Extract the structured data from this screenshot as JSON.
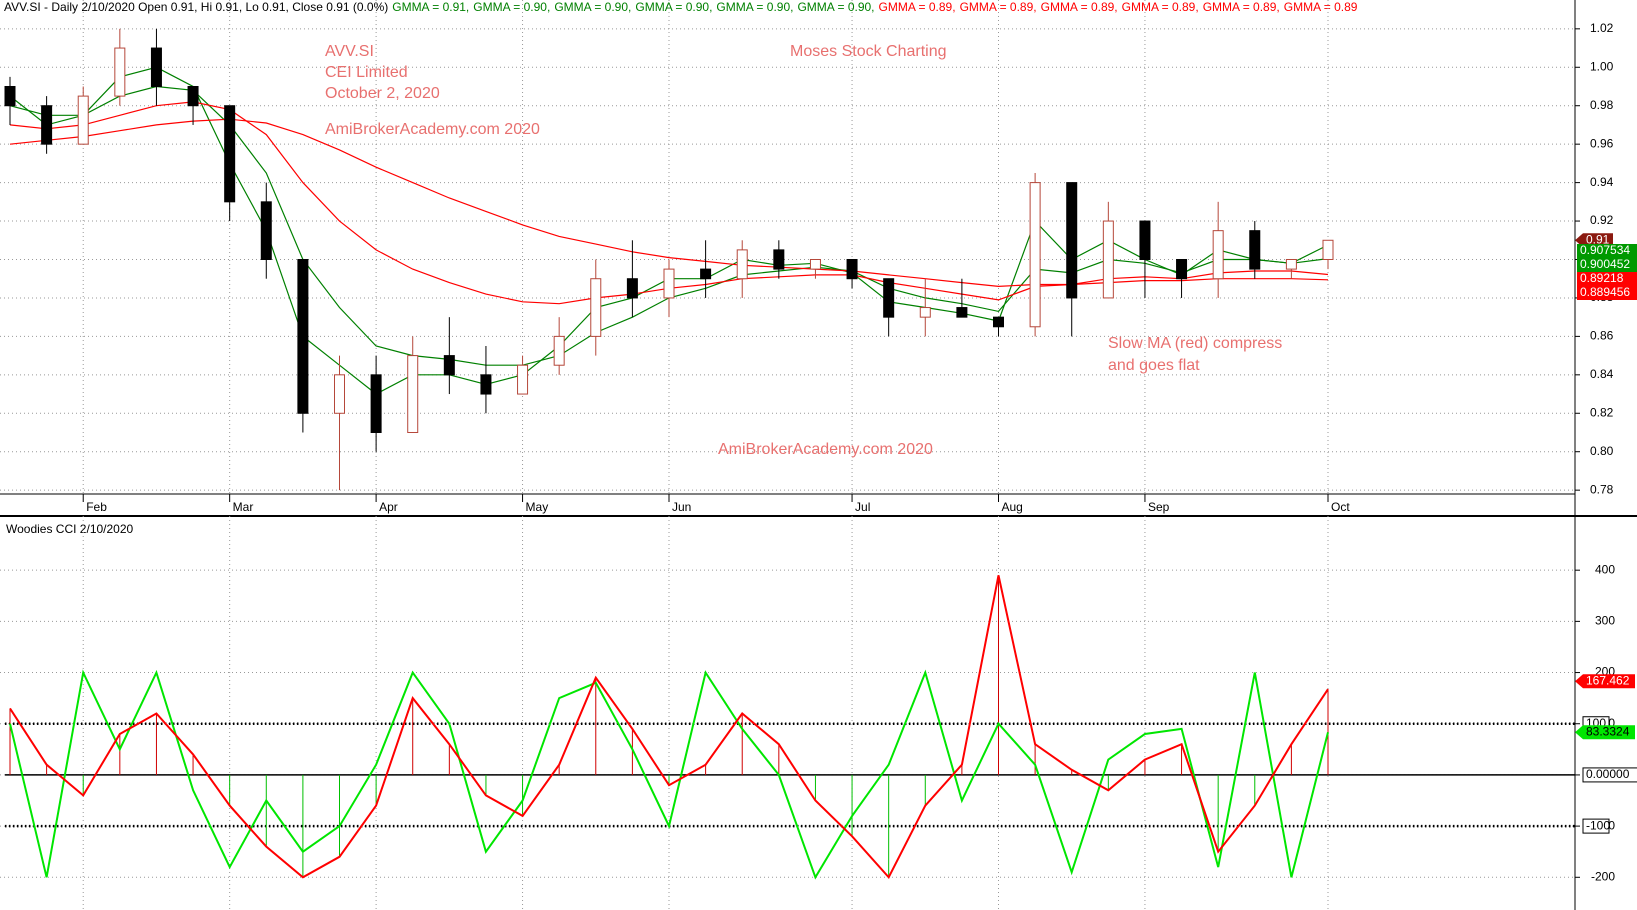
{
  "header": {
    "parts": [
      "AVV.SI - Daily 2/10/2020 Open 0.91, Hi 0.91, Lo 0.91, Close 0.91 (0.0%)",
      "GMMA = 0.91,",
      "GMMA = 0.90,",
      "GMMA = 0.90,",
      "GMMA = 0.90,",
      "GMMA = 0.90,",
      "GMMA = 0.90,",
      "GMMA = 0.89,",
      "GMMA = 0.89,",
      "GMMA = 0.89,",
      "GMMA = 0.89,",
      "GMMA = 0.89,",
      "GMMA = 0.89"
    ],
    "colors": [
      "#000000",
      "#008000",
      "#008000",
      "#008000",
      "#008000",
      "#008000",
      "#008000",
      "#ff0000",
      "#ff0000",
      "#ff0000",
      "#ff0000",
      "#ff0000",
      "#ff0000"
    ]
  },
  "chart_data": [
    {
      "type": "candlestick",
      "categories": [
        null,
        null,
        "Feb",
        null,
        null,
        null,
        "Mar",
        null,
        null,
        null,
        "Apr",
        null,
        null,
        null,
        "May",
        null,
        null,
        null,
        "Jun",
        null,
        null,
        null,
        null,
        "Jul",
        null,
        null,
        null,
        "Aug",
        null,
        null,
        null,
        "Sep",
        null,
        null,
        null,
        null,
        "Oct"
      ],
      "open": [
        0.99,
        0.98,
        0.96,
        0.985,
        1.01,
        0.99,
        0.98,
        0.93,
        0.9,
        0.82,
        0.84,
        0.81,
        0.85,
        0.84,
        0.83,
        0.845,
        0.86,
        0.89,
        0.88,
        0.895,
        0.89,
        0.905,
        0.895,
        0.9,
        0.89,
        0.87,
        0.875,
        0.87,
        0.865,
        0.94,
        0.88,
        0.92,
        0.9,
        0.89,
        0.915,
        0.895,
        0.9
      ],
      "high": [
        0.995,
        0.985,
        0.99,
        1.02,
        1.02,
        0.99,
        0.98,
        0.94,
        0.9,
        0.85,
        0.85,
        0.86,
        0.87,
        0.855,
        0.85,
        0.87,
        0.9,
        0.91,
        0.9,
        0.91,
        0.91,
        0.91,
        0.9,
        0.9,
        0.89,
        0.89,
        0.89,
        0.87,
        0.945,
        0.94,
        0.93,
        0.92,
        0.9,
        0.93,
        0.92,
        0.9,
        0.91
      ],
      "low": [
        0.97,
        0.955,
        0.96,
        0.98,
        0.98,
        0.97,
        0.92,
        0.89,
        0.81,
        0.78,
        0.8,
        0.81,
        0.83,
        0.82,
        0.83,
        0.84,
        0.85,
        0.87,
        0.87,
        0.88,
        0.88,
        0.89,
        0.89,
        0.885,
        0.86,
        0.86,
        0.87,
        0.86,
        0.86,
        0.86,
        0.88,
        0.88,
        0.88,
        0.88,
        0.89,
        0.89,
        0.895
      ],
      "close": [
        0.98,
        0.96,
        0.985,
        1.01,
        0.99,
        0.98,
        0.93,
        0.9,
        0.82,
        0.84,
        0.81,
        0.85,
        0.84,
        0.83,
        0.845,
        0.86,
        0.89,
        0.88,
        0.895,
        0.89,
        0.905,
        0.895,
        0.9,
        0.89,
        0.87,
        0.875,
        0.87,
        0.865,
        0.94,
        0.88,
        0.92,
        0.9,
        0.89,
        0.915,
        0.895,
        0.9,
        0.91
      ],
      "up_color": "#b5473a",
      "down_color": "#000000",
      "series": [
        {
          "color": "#008000",
          "values": [
            0.985,
            0.97,
            0.975,
            0.995,
            1.0,
            0.99,
            0.95,
            0.915,
            0.86,
            0.845,
            0.83,
            0.84,
            0.84,
            0.835,
            0.84,
            0.855,
            0.875,
            0.88,
            0.89,
            0.89,
            0.9,
            0.897,
            0.898,
            0.893,
            0.878,
            0.875,
            0.872,
            0.868,
            0.92,
            0.9,
            0.91,
            0.9,
            0.892,
            0.905,
            0.9,
            0.898,
            0.907534
          ]
        },
        {
          "color": "#008000",
          "values": [
            0.98,
            0.975,
            0.975,
            0.985,
            0.99,
            0.988,
            0.97,
            0.945,
            0.9,
            0.875,
            0.855,
            0.85,
            0.848,
            0.845,
            0.845,
            0.85,
            0.862,
            0.87,
            0.88,
            0.885,
            0.892,
            0.894,
            0.896,
            0.894,
            0.885,
            0.88,
            0.877,
            0.873,
            0.895,
            0.893,
            0.9,
            0.898,
            0.893,
            0.9,
            0.9,
            0.898,
            0.900452
          ]
        },
        {
          "color": "#ff0000",
          "values": [
            0.97,
            0.968,
            0.97,
            0.975,
            0.98,
            0.982,
            0.978,
            0.965,
            0.94,
            0.92,
            0.905,
            0.895,
            0.888,
            0.882,
            0.878,
            0.877,
            0.88,
            0.882,
            0.885,
            0.887,
            0.89,
            0.891,
            0.892,
            0.892,
            0.888,
            0.885,
            0.882,
            0.879,
            0.886,
            0.887,
            0.89,
            0.891,
            0.89,
            0.893,
            0.894,
            0.894,
            0.89218
          ]
        },
        {
          "color": "#ff0000",
          "values": [
            0.96,
            0.962,
            0.964,
            0.967,
            0.97,
            0.972,
            0.973,
            0.971,
            0.965,
            0.957,
            0.948,
            0.94,
            0.932,
            0.925,
            0.918,
            0.912,
            0.908,
            0.904,
            0.901,
            0.899,
            0.897,
            0.896,
            0.895,
            0.894,
            0.892,
            0.89,
            0.888,
            0.886,
            0.887,
            0.887,
            0.888,
            0.889,
            0.889,
            0.89,
            0.89,
            0.89,
            0.889456
          ]
        }
      ],
      "ylim": [
        0.778,
        1.035
      ],
      "yticks": [
        0.78,
        {
          "value": 0.8,
          "label": "0.80"
        },
        0.82,
        0.84,
        0.86,
        0.88,
        {
          "value": 0.9,
          "label": "0.90"
        },
        0.92,
        0.94,
        0.96,
        0.98,
        {
          "value": 1,
          "label": "1.00"
        },
        1.02
      ],
      "grid": true,
      "annotations": [
        "AVV.SI",
        "CEI Limited",
        "October 2, 2020",
        "AmiBrokerAcademy.com  2020",
        "Moses Stock Charting",
        "Slow MA (red) compress",
        "and goes flat",
        "AmiBrokerAcademy.com  2020"
      ],
      "annotation_color": "#e8706f"
    },
    {
      "type": "line",
      "title": "Woodies CCI  2/10/2020",
      "series": [
        {
          "color": "#ff0000",
          "values": [
            130,
            20,
            -40,
            80,
            120,
            40,
            -60,
            -140,
            -200,
            -160,
            -60,
            150,
            60,
            -40,
            -80,
            20,
            190,
            90,
            -20,
            20,
            120,
            60,
            -50,
            -120,
            -200,
            -60,
            20,
            390,
            60,
            10,
            -30,
            30,
            60,
            -150,
            -60,
            60,
            167.462
          ]
        },
        {
          "color": "#00e600",
          "values": [
            100,
            -200,
            200,
            50,
            200,
            -30,
            -180,
            -50,
            -150,
            -100,
            20,
            200,
            100,
            -150,
            -50,
            150,
            180,
            50,
            -100,
            200,
            90,
            0,
            -200,
            -80,
            20,
            200,
            -50,
            100,
            20,
            -190,
            30,
            80,
            90,
            -180,
            200,
            -200,
            83.3324
          ]
        }
      ],
      "ylim": [
        -260,
        500
      ],
      "yticks": [
        -200,
        -100,
        0,
        100,
        200,
        300,
        400
      ],
      "ref_lines": [
        100,
        {
          "value": 0,
          "label": "0.00000"
        },
        -100
      ],
      "grid": true
    }
  ]
}
